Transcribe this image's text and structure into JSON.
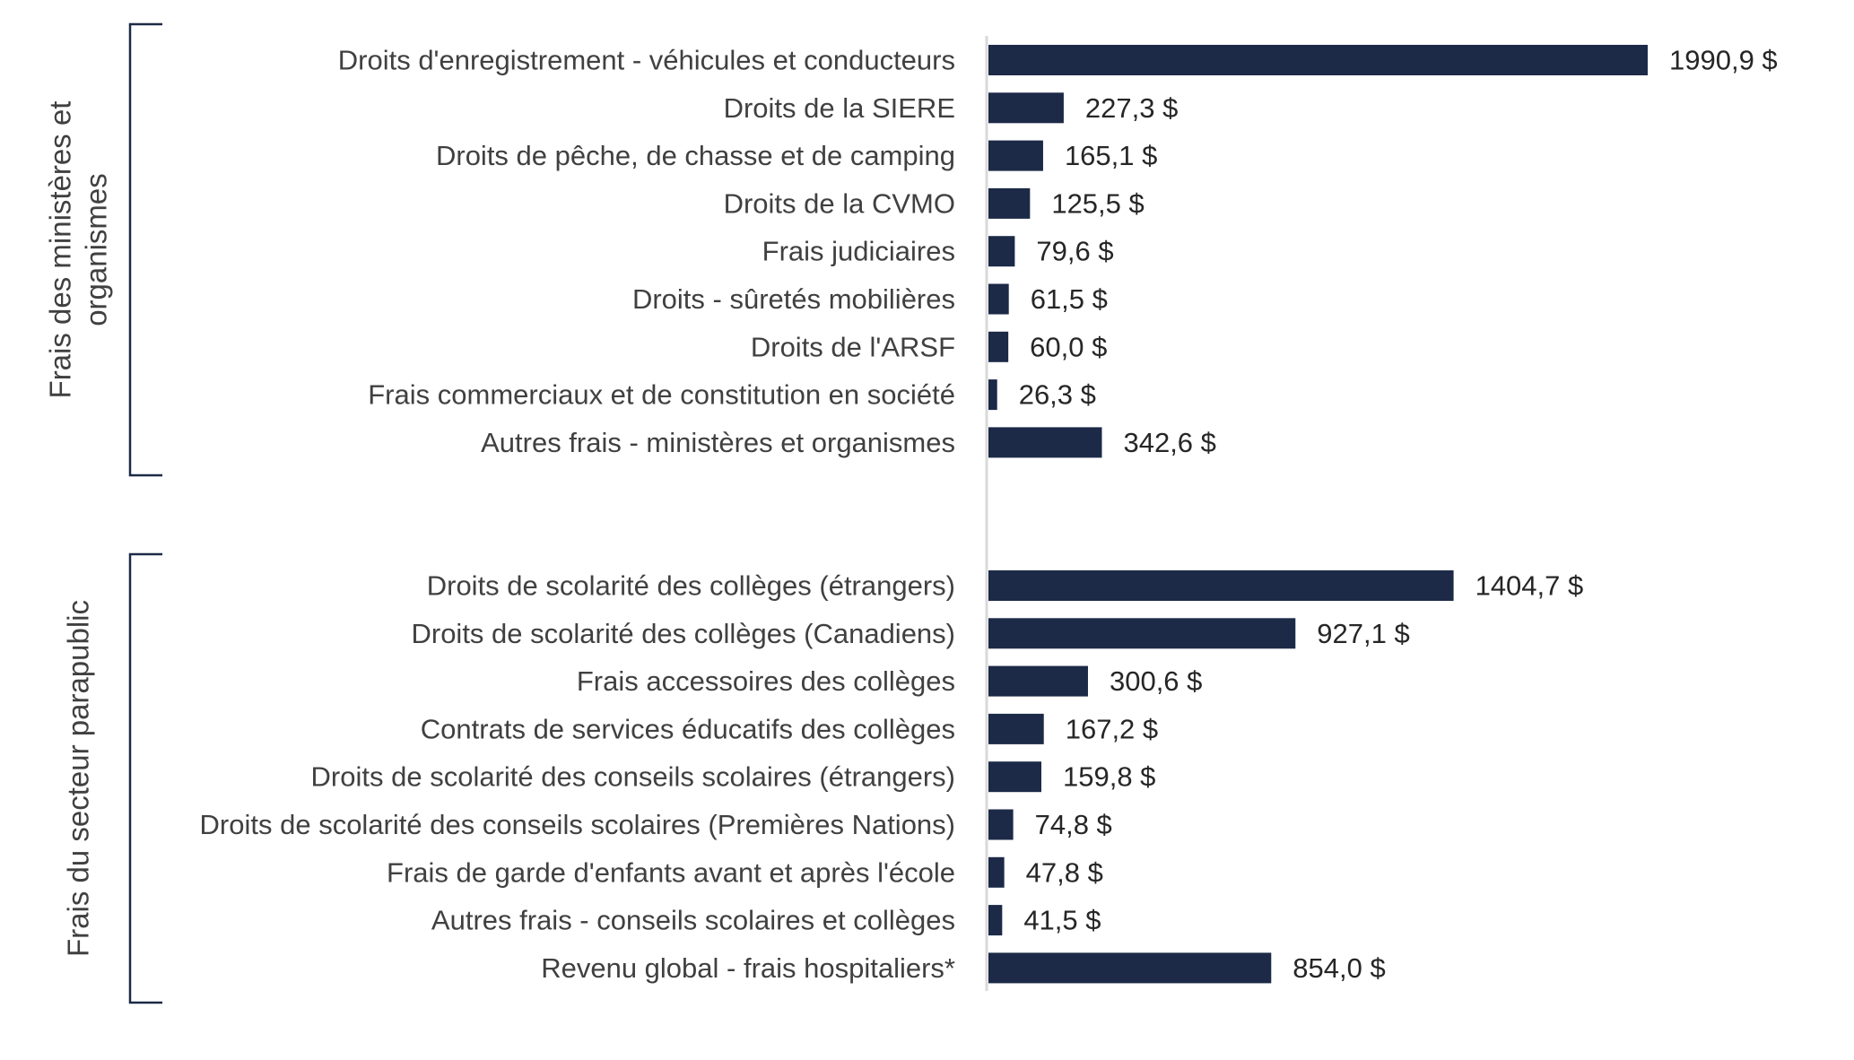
{
  "colors": {
    "bar": "#1c2a47",
    "axis": "#d9d9d9",
    "bracket": "#1c2a47"
  },
  "chart_data": {
    "type": "bar",
    "orientation": "horizontal",
    "value_suffix": " $",
    "groups": [
      {
        "label_lines": [
          "Frais des ministères et",
          "organismes"
        ],
        "categories": [
          "Droits d'enregistrement - véhicules et conducteurs",
          "Droits de la SIERE",
          "Droits de pêche, de chasse et de camping",
          "Droits de la CVMO",
          "Frais judiciaires",
          "Droits - sûretés mobilières",
          "Droits de l'ARSF",
          "Frais commerciaux et de constitution en société",
          "Autres frais - ministères et organismes"
        ],
        "values": [
          1990.9,
          227.3,
          165.1,
          125.5,
          79.6,
          61.5,
          60.0,
          26.3,
          342.6
        ],
        "value_labels": [
          "1990,9 $",
          "227,3 $",
          "165,1 $",
          "125,5 $",
          "79,6 $",
          "61,5 $",
          "60,0 $",
          "26,3 $",
          "342,6 $"
        ]
      },
      {
        "label_lines": [
          "Frais du secteur parapublic"
        ],
        "categories": [
          "Droits de scolarité des collèges (étrangers)",
          "Droits de scolarité des collèges (Canadiens)",
          "Frais accessoires des collèges",
          "Contrats de services éducatifs des collèges",
          "Droits de scolarité des conseils scolaires (étrangers)",
          "Droits de scolarité des conseils scolaires (Premières Nations)",
          "Frais de garde d'enfants avant et après l'école",
          "Autres frais - conseils scolaires et collèges",
          "Revenu global - frais hospitaliers*"
        ],
        "values": [
          1404.7,
          927.1,
          300.6,
          167.2,
          159.8,
          74.8,
          47.8,
          41.5,
          854.0
        ],
        "value_labels": [
          "1404,7 $",
          "927,1 $",
          "300,6 $",
          "167,2 $",
          "159,8 $",
          "74,8 $",
          "47,8 $",
          "41,5 $",
          "854,0 $"
        ]
      }
    ],
    "title": "",
    "xlabel": "",
    "ylabel": "",
    "xlim": [
      0,
      1990.9
    ],
    "grid": false,
    "legend": "none"
  }
}
